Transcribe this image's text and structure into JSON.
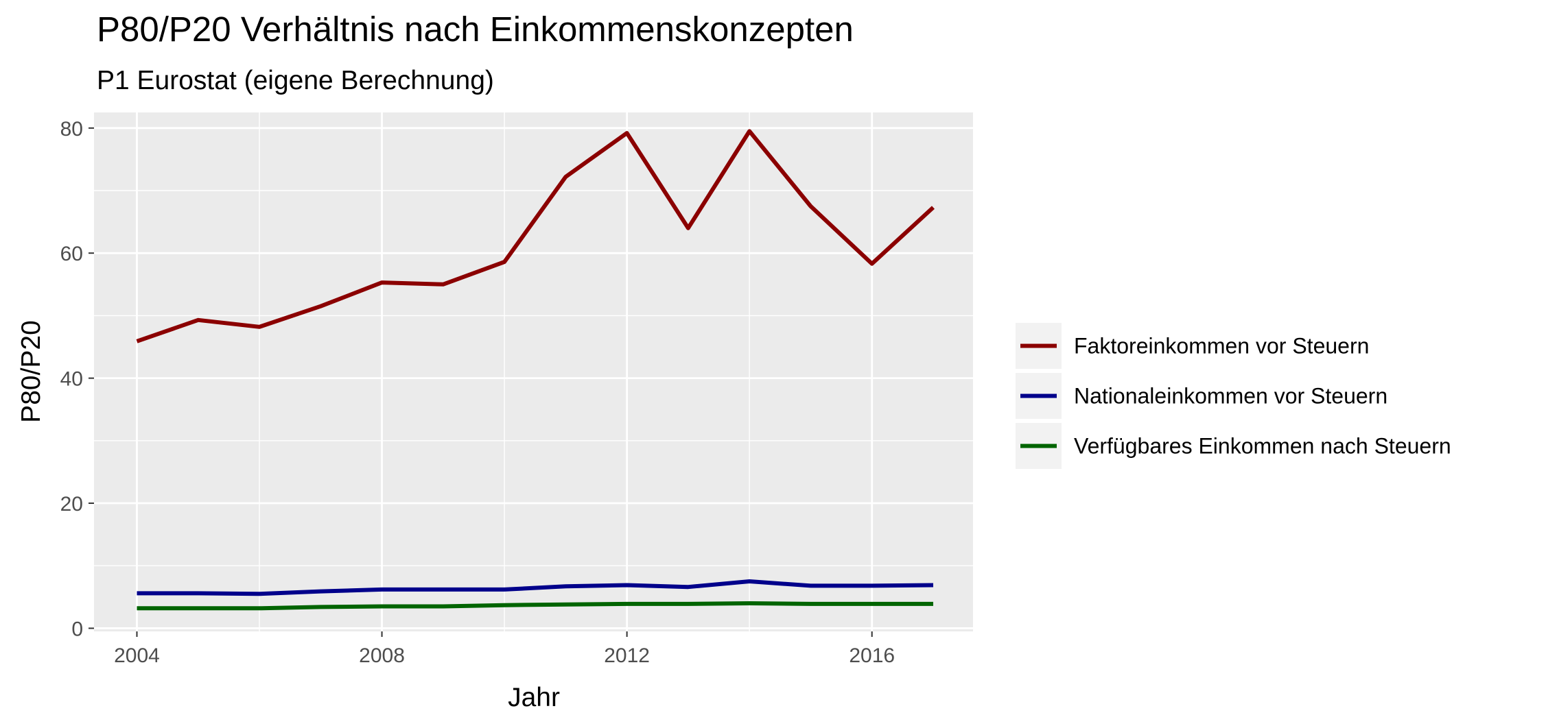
{
  "chart_data": {
    "type": "line",
    "title": "P80/P20 Verhältnis nach Einkommenskonzepten",
    "subtitle": "P1 Eurostat (eigene Berechnung)",
    "xlabel": "Jahr",
    "ylabel": "P80/P20",
    "x": [
      2004,
      2005,
      2006,
      2007,
      2008,
      2009,
      2010,
      2011,
      2012,
      2013,
      2014,
      2015,
      2016,
      2017
    ],
    "xlim": [
      2003.3,
      2017.65
    ],
    "ylim": [
      -0.5,
      82.5
    ],
    "x_ticks": [
      "2004",
      "2008",
      "2012",
      "2016"
    ],
    "y_ticks": [
      "0",
      "20",
      "40",
      "60",
      "80"
    ],
    "grid": true,
    "legend_position": "right",
    "series": [
      {
        "name": "Faktoreinkommen vor Steuern",
        "color": "#8B0000",
        "values": [
          45.9,
          49.3,
          48.2,
          51.5,
          55.3,
          55.0,
          58.6,
          72.2,
          79.2,
          64.0,
          79.5,
          67.5,
          58.3,
          67.3
        ]
      },
      {
        "name": "Nationaleinkommen vor Steuern",
        "color": "#00008B",
        "values": [
          5.6,
          5.6,
          5.5,
          5.9,
          6.2,
          6.2,
          6.2,
          6.7,
          6.9,
          6.6,
          7.5,
          6.8,
          6.8,
          6.9
        ]
      },
      {
        "name": "Verfügbares Einkommen nach Steuern",
        "color": "#006400",
        "values": [
          3.2,
          3.2,
          3.2,
          3.4,
          3.5,
          3.5,
          3.7,
          3.8,
          3.9,
          3.9,
          4.0,
          3.9,
          3.9,
          3.9
        ]
      }
    ]
  }
}
